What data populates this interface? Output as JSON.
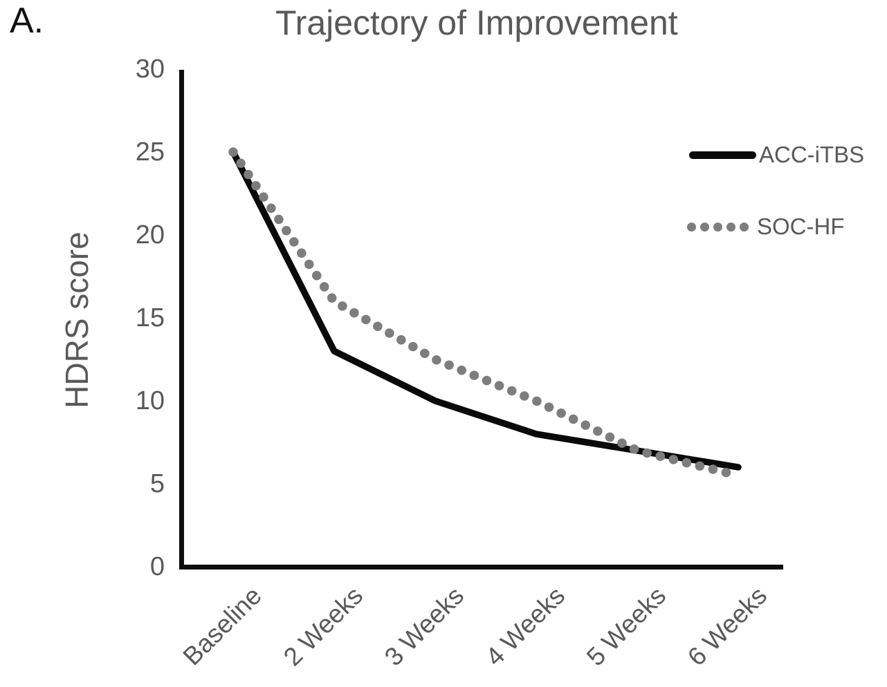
{
  "panel_label": "A.",
  "chart_data": {
    "type": "line",
    "title": "Trajectory of Improvement",
    "xlabel": "",
    "ylabel": "HDRS score",
    "categories": [
      "Baseline",
      "2 Weeks",
      "3 Weeks",
      "4 Weeks",
      "5 Weeks",
      "6 Weeks"
    ],
    "series": [
      {
        "name": "ACC-iTBS",
        "style": "solid",
        "color": "#0a0a0a",
        "values": [
          25,
          13,
          10,
          8,
          7,
          6
        ]
      },
      {
        "name": "SOC-HF",
        "style": "dotted",
        "color": "#7d7d7d",
        "values": [
          25,
          16,
          12.5,
          10,
          7,
          5.5
        ]
      }
    ],
    "ylim": [
      0,
      30
    ],
    "yticks": [
      0,
      5,
      10,
      15,
      20,
      25,
      30
    ],
    "grid": false,
    "legend_position": "right",
    "x_tick_rotation_deg": 45
  }
}
